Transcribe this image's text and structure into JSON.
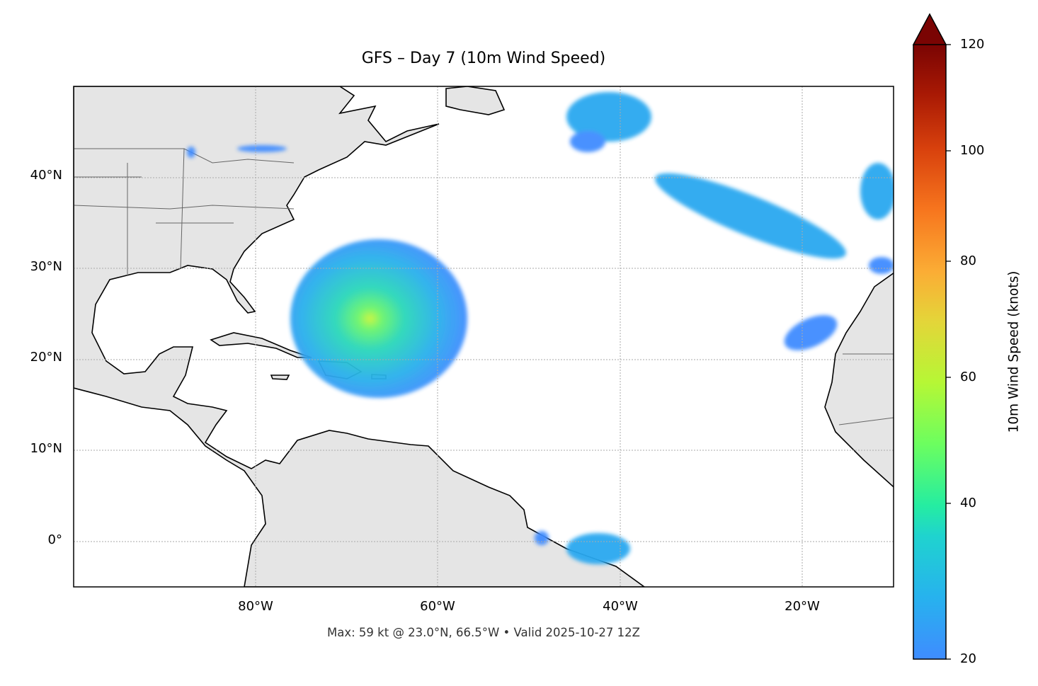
{
  "title": "GFS – Day 7 (10m Wind Speed)",
  "footer": "Max: 59 kt @ 23.0°N, 66.5°W • Valid 2025-10-27 12Z",
  "chart_data": {
    "type": "heatmap",
    "title": "GFS – Day 7 (10m Wind Speed)",
    "projection": "PlateCarree",
    "lon_range": [
      -100,
      -10
    ],
    "lat_range": [
      -5,
      50
    ],
    "grid": true,
    "x_ticks": [
      "80°W",
      "60°W",
      "40°W",
      "20°W"
    ],
    "y_ticks": [
      "40°N",
      "30°N",
      "20°N",
      "10°N",
      "0°"
    ],
    "colorbar": {
      "label": "10m Wind Speed (knots)",
      "ticks": [
        "20",
        "40",
        "60",
        "80",
        "100",
        "120"
      ],
      "range": [
        20,
        120
      ],
      "extend": "max",
      "colormap": "turbo",
      "colors": [
        "#3f8cff",
        "#1fc8d8",
        "#2ef09a",
        "#a8fb3c",
        "#f9b233",
        "#e24a10",
        "#7a0403"
      ]
    },
    "max": {
      "value_kt": 59,
      "lat": 23.0,
      "lon": -66.5
    },
    "valid": "2025-10-27 12Z",
    "land_color": "#e5e5e5"
  }
}
